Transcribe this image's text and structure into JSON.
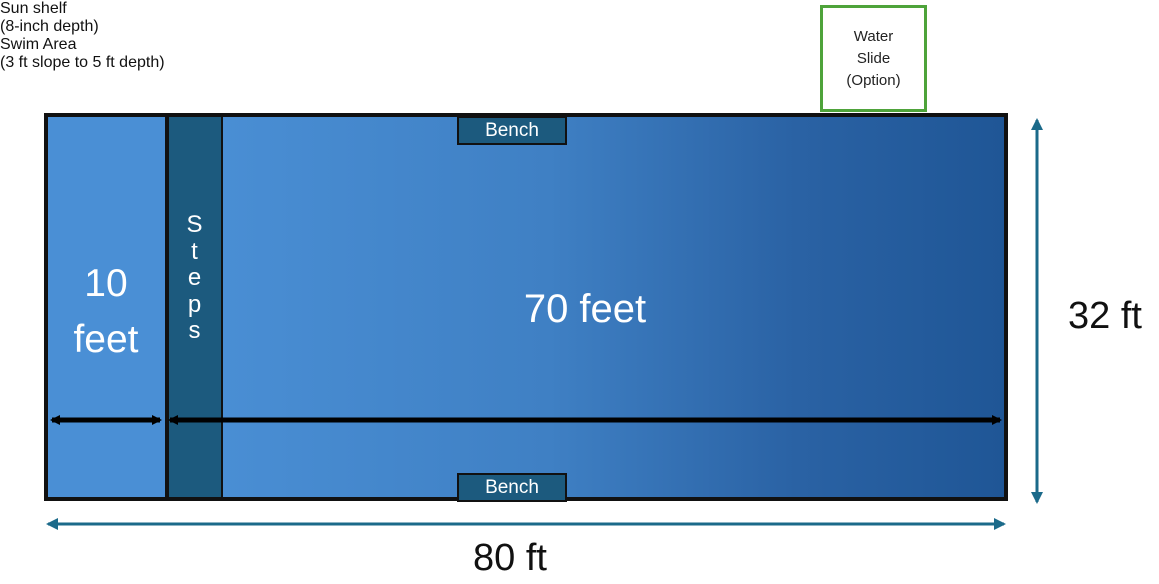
{
  "labels": {
    "sun_shelf_title": "Sun shelf",
    "sun_shelf_depth": "(8-inch depth)",
    "swim_area_title": "Swim Area",
    "swim_area_depth": "(3 ft slope to 5 ft depth)",
    "water_slide_line1": "Water",
    "water_slide_line2": "Slide",
    "water_slide_line3": "(Option)"
  },
  "pool": {
    "steps_letters": [
      "S",
      "t",
      "e",
      "p",
      "s"
    ],
    "bench_top": "Bench",
    "bench_bottom": "Bench",
    "sun_shelf_length_line1": "10",
    "sun_shelf_length_line2": "feet",
    "swim_area_length": "70 feet"
  },
  "dimensions": {
    "total_width": "32 ft",
    "total_length": "80 ft"
  },
  "colors": {
    "sun_shelf": "#4a8fd5",
    "swim_light": "#4b90d6",
    "swim_dark": "#1f5696",
    "steps_bench": "#1c5a7e",
    "slide_border": "#4ea33a",
    "dimension_arrow": "#1b6a8a",
    "inner_arrow": "#000000"
  }
}
